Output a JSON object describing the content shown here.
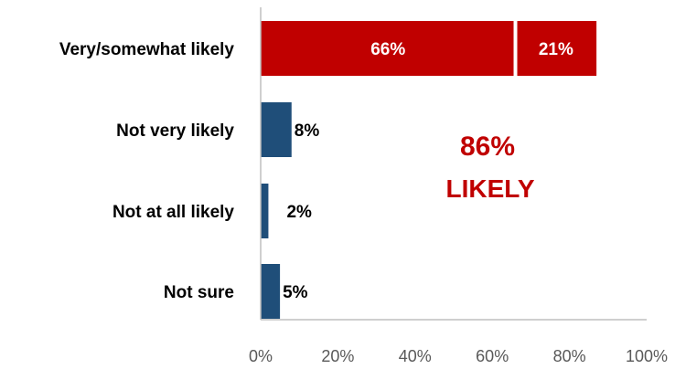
{
  "chart_data": {
    "type": "bar",
    "orientation": "horizontal",
    "stacked": true,
    "categories": [
      "Very/somewhat likely",
      "Not very likely",
      "Not at all likely",
      "Not sure"
    ],
    "series": [
      {
        "values": [
          66,
          8,
          2,
          5
        ],
        "data_labels": [
          "66%",
          "8%",
          "2%",
          "5%"
        ]
      },
      {
        "values": [
          21,
          0,
          0,
          0
        ],
        "data_labels": [
          "21%",
          "",
          "",
          ""
        ]
      }
    ],
    "xlim": [
      0,
      100
    ],
    "x_ticks": [
      0,
      20,
      40,
      60,
      80,
      100
    ],
    "x_tick_labels": [
      "0%",
      "20%",
      "40%",
      "60%",
      "80%",
      "100%"
    ],
    "annotation": {
      "value": "86%",
      "label": "LIKELY"
    },
    "grid": false,
    "colors": {
      "highlight_bar": "#C00000",
      "other_bars": "#1F4E79",
      "annotation": "#C00000",
      "axis": "#BFBFBF",
      "tick_label": "#595959"
    }
  }
}
